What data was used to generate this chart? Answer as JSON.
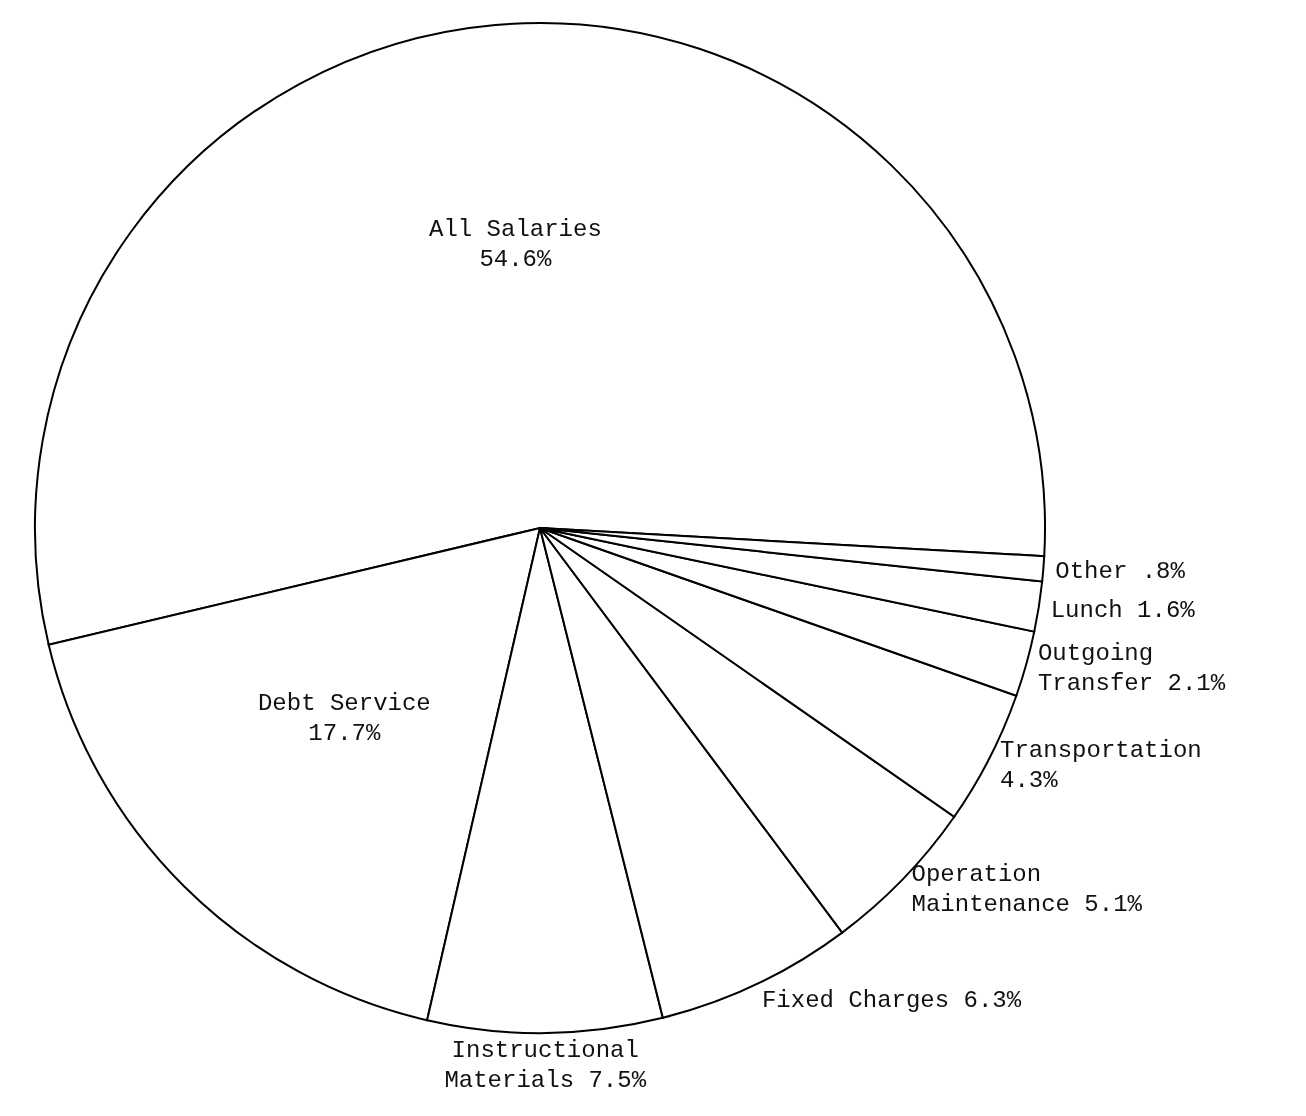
{
  "chart_data": {
    "type": "pie",
    "categories": [
      "All Salaries",
      "Debt Service",
      "Instructional Materials",
      "Fixed Charges",
      "Operation Maintenance",
      "Transportation",
      "Outgoing Transfer",
      "Lunch",
      "Other"
    ],
    "values": [
      54.6,
      17.7,
      7.5,
      6.3,
      5.1,
      4.3,
      2.1,
      1.6,
      0.8
    ],
    "value_labels": [
      "54.6%",
      "17.7%",
      "7.5%",
      "6.3%",
      "5.1%",
      "4.3%",
      "2.1%",
      "1.6%",
      ".8%"
    ],
    "colors": [
      "#ffffff",
      "#ffffff",
      "#ffffff",
      "#ffffff",
      "#ffffff",
      "#ffffff",
      "#ffffff",
      "#ffffff",
      "#ffffff"
    ]
  }
}
